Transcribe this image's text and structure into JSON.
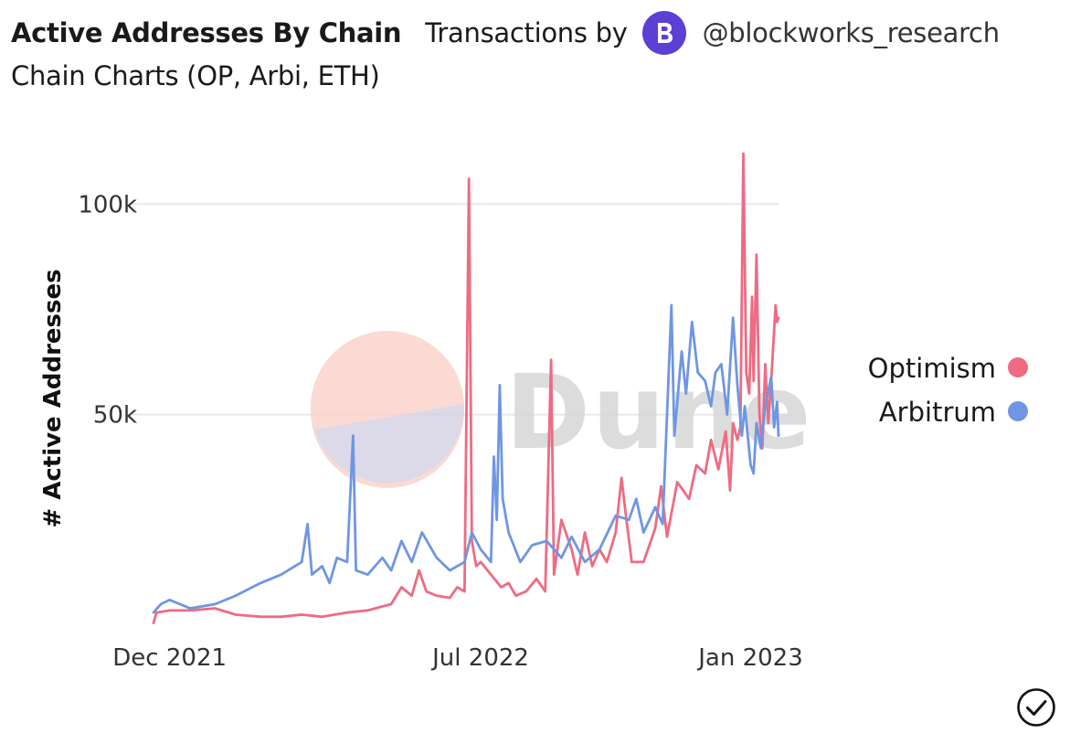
{
  "header": {
    "title": "Active Addresses By Chain",
    "subtitle_part1": "Transactions by",
    "author": "@blockworks_research",
    "subtitle_part2": "Chain Charts (OP, Arbi, ETH)",
    "avatar_letter": "B"
  },
  "watermark": "Dune",
  "colors": {
    "optimism": "#ee6b82",
    "arbitrum": "#6f96e3",
    "avatar": "#5c3fd4",
    "watermark_text": "#d7d7d7",
    "watermark_pie_top": "#fbd4cc",
    "watermark_pie_bottom": "#d6d3e4"
  },
  "icons": {
    "status": "check-circle-icon",
    "avatar": "blockworks-logo-icon"
  },
  "chart_data": {
    "type": "line",
    "ylabel": "# Active Addresses",
    "xlabel": "",
    "ylim": [
      0,
      112000
    ],
    "yticks": [
      50000,
      100000
    ],
    "ytick_labels": [
      "50k",
      "100k"
    ],
    "xticks": [
      "2021-12-01",
      "2022-07-01",
      "2023-01-01"
    ],
    "xtick_labels": [
      "Dec 2021",
      "Jul 2022",
      "Jan 2023"
    ],
    "legend_position": "right",
    "grid": true,
    "series": [
      {
        "name": "Optimism",
        "points": [
          [
            "2021-11-20",
            500
          ],
          [
            "2021-11-22",
            3000
          ],
          [
            "2021-12-01",
            3500
          ],
          [
            "2021-12-15",
            3500
          ],
          [
            "2022-01-01",
            4000
          ],
          [
            "2022-01-15",
            2500
          ],
          [
            "2022-02-01",
            2000
          ],
          [
            "2022-02-15",
            2000
          ],
          [
            "2022-03-01",
            2500
          ],
          [
            "2022-03-15",
            2000
          ],
          [
            "2022-04-01",
            3000
          ],
          [
            "2022-04-15",
            3500
          ],
          [
            "2022-05-01",
            5000
          ],
          [
            "2022-05-08",
            9000
          ],
          [
            "2022-05-15",
            7000
          ],
          [
            "2022-05-20",
            13000
          ],
          [
            "2022-05-25",
            8000
          ],
          [
            "2022-06-01",
            7000
          ],
          [
            "2022-06-10",
            6500
          ],
          [
            "2022-06-15",
            9000
          ],
          [
            "2022-06-20",
            8000
          ],
          [
            "2022-06-23",
            106000
          ],
          [
            "2022-06-25",
            20000
          ],
          [
            "2022-06-28",
            14000
          ],
          [
            "2022-07-01",
            15000
          ],
          [
            "2022-07-08",
            12000
          ],
          [
            "2022-07-15",
            9000
          ],
          [
            "2022-07-20",
            10000
          ],
          [
            "2022-07-25",
            7000
          ],
          [
            "2022-08-01",
            8000
          ],
          [
            "2022-08-08",
            11000
          ],
          [
            "2022-08-14",
            8000
          ],
          [
            "2022-08-18",
            63000
          ],
          [
            "2022-08-20",
            12000
          ],
          [
            "2022-08-25",
            25000
          ],
          [
            "2022-09-01",
            18000
          ],
          [
            "2022-09-05",
            12000
          ],
          [
            "2022-09-10",
            22000
          ],
          [
            "2022-09-15",
            14000
          ],
          [
            "2022-09-20",
            18000
          ],
          [
            "2022-09-25",
            15000
          ],
          [
            "2022-10-01",
            22000
          ],
          [
            "2022-10-05",
            35000
          ],
          [
            "2022-10-08",
            26000
          ],
          [
            "2022-10-12",
            15000
          ],
          [
            "2022-10-20",
            15000
          ],
          [
            "2022-10-28",
            23000
          ],
          [
            "2022-11-01",
            33000
          ],
          [
            "2022-11-05",
            21000
          ],
          [
            "2022-11-12",
            34000
          ],
          [
            "2022-11-20",
            30000
          ],
          [
            "2022-11-25",
            38000
          ],
          [
            "2022-12-01",
            36000
          ],
          [
            "2022-12-05",
            44000
          ],
          [
            "2022-12-10",
            37000
          ],
          [
            "2022-12-15",
            46000
          ],
          [
            "2022-12-18",
            32000
          ],
          [
            "2022-12-20",
            48000
          ],
          [
            "2022-12-23",
            44000
          ],
          [
            "2022-12-25",
            47000
          ],
          [
            "2022-12-27",
            112000
          ],
          [
            "2022-12-29",
            60000
          ],
          [
            "2022-12-31",
            55000
          ],
          [
            "2023-01-02",
            78000
          ],
          [
            "2023-01-03",
            58000
          ],
          [
            "2023-01-05",
            88000
          ],
          [
            "2023-01-07",
            50000
          ],
          [
            "2023-01-09",
            42000
          ],
          [
            "2023-01-11",
            62000
          ],
          [
            "2023-01-13",
            48000
          ],
          [
            "2023-01-15",
            58000
          ],
          [
            "2023-01-17",
            70000
          ],
          [
            "2023-01-18",
            76000
          ],
          [
            "2023-01-19",
            72000
          ],
          [
            "2023-01-20",
            73000
          ]
        ]
      },
      {
        "name": "Arbitrum",
        "points": [
          [
            "2021-11-20",
            3000
          ],
          [
            "2021-11-25",
            5000
          ],
          [
            "2021-12-01",
            6000
          ],
          [
            "2021-12-08",
            5000
          ],
          [
            "2021-12-15",
            4000
          ],
          [
            "2022-01-01",
            5000
          ],
          [
            "2022-01-15",
            7000
          ],
          [
            "2022-02-01",
            10000
          ],
          [
            "2022-02-15",
            12000
          ],
          [
            "2022-03-01",
            15000
          ],
          [
            "2022-03-05",
            24000
          ],
          [
            "2022-03-08",
            12000
          ],
          [
            "2022-03-15",
            14000
          ],
          [
            "2022-03-20",
            10000
          ],
          [
            "2022-03-25",
            16000
          ],
          [
            "2022-04-01",
            15000
          ],
          [
            "2022-04-05",
            45000
          ],
          [
            "2022-04-07",
            13000
          ],
          [
            "2022-04-15",
            12000
          ],
          [
            "2022-04-25",
            16000
          ],
          [
            "2022-05-01",
            13000
          ],
          [
            "2022-05-08",
            20000
          ],
          [
            "2022-05-15",
            15000
          ],
          [
            "2022-05-22",
            22000
          ],
          [
            "2022-06-01",
            16000
          ],
          [
            "2022-06-10",
            13000
          ],
          [
            "2022-06-20",
            15000
          ],
          [
            "2022-06-25",
            22000
          ],
          [
            "2022-07-01",
            18000
          ],
          [
            "2022-07-08",
            15000
          ],
          [
            "2022-07-10",
            40000
          ],
          [
            "2022-07-12",
            25000
          ],
          [
            "2022-07-14",
            57000
          ],
          [
            "2022-07-16",
            30000
          ],
          [
            "2022-07-20",
            22000
          ],
          [
            "2022-07-28",
            15000
          ],
          [
            "2022-08-05",
            19000
          ],
          [
            "2022-08-15",
            20000
          ],
          [
            "2022-08-25",
            16000
          ],
          [
            "2022-09-01",
            21000
          ],
          [
            "2022-09-10",
            15000
          ],
          [
            "2022-09-20",
            18000
          ],
          [
            "2022-10-01",
            26000
          ],
          [
            "2022-10-10",
            25000
          ],
          [
            "2022-10-15",
            30000
          ],
          [
            "2022-10-20",
            22000
          ],
          [
            "2022-10-28",
            28000
          ],
          [
            "2022-11-02",
            24000
          ],
          [
            "2022-11-08",
            76000
          ],
          [
            "2022-11-10",
            45000
          ],
          [
            "2022-11-15",
            65000
          ],
          [
            "2022-11-18",
            55000
          ],
          [
            "2022-11-22",
            72000
          ],
          [
            "2022-11-26",
            60000
          ],
          [
            "2022-12-01",
            58000
          ],
          [
            "2022-12-05",
            52000
          ],
          [
            "2022-12-08",
            60000
          ],
          [
            "2022-12-12",
            62000
          ],
          [
            "2022-12-16",
            50000
          ],
          [
            "2022-12-20",
            73000
          ],
          [
            "2022-12-23",
            57000
          ],
          [
            "2022-12-26",
            45000
          ],
          [
            "2022-12-28",
            52000
          ],
          [
            "2023-01-01",
            38000
          ],
          [
            "2023-01-03",
            36000
          ],
          [
            "2023-01-05",
            48000
          ],
          [
            "2023-01-08",
            42000
          ],
          [
            "2023-01-11",
            52000
          ],
          [
            "2023-01-15",
            59000
          ],
          [
            "2023-01-17",
            47000
          ],
          [
            "2023-01-19",
            53000
          ],
          [
            "2023-01-20",
            45000
          ]
        ]
      }
    ]
  }
}
